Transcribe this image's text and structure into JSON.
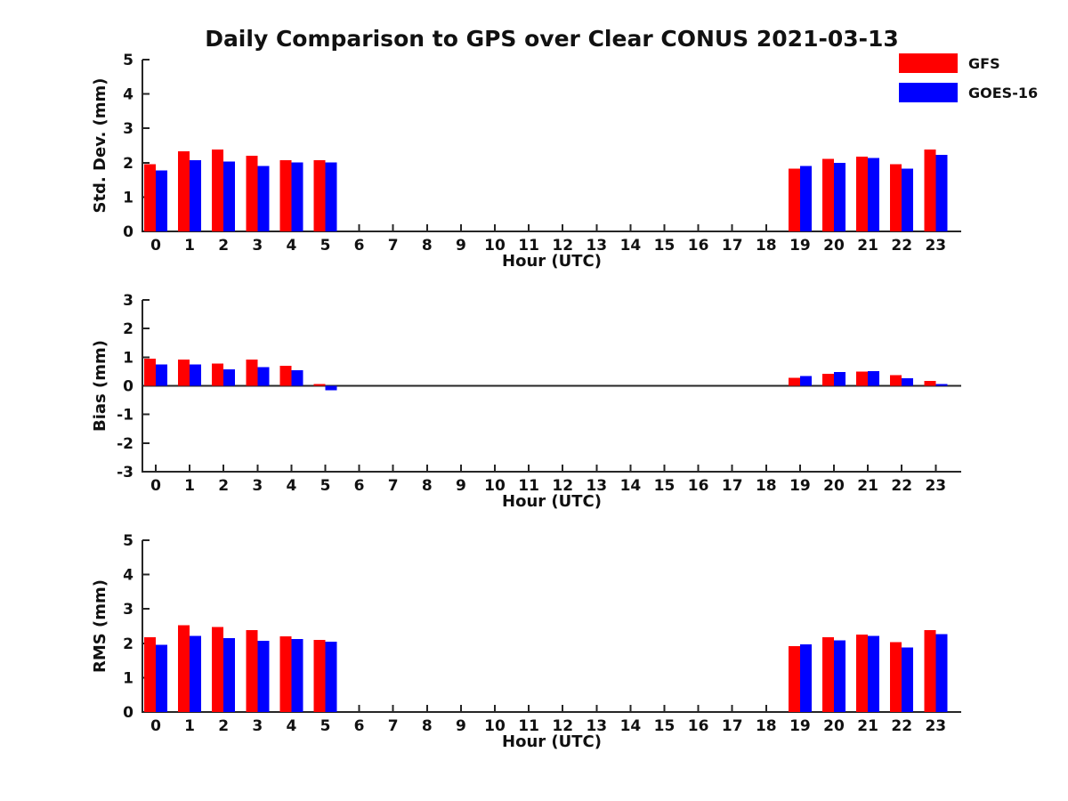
{
  "title": "Daily Comparison to GPS over Clear CONUS 2021-03-13",
  "colors": {
    "gfs": "#ff0000",
    "goes16": "#0000ff",
    "axis": "#262626",
    "text": "#111111",
    "background": "#ffffff"
  },
  "legend": [
    {
      "label": "GFS",
      "color": "#ff0000"
    },
    {
      "label": "GOES-16",
      "color": "#0000ff"
    }
  ],
  "chart_data": [
    {
      "id": "stddev",
      "type": "bar",
      "title": "",
      "xlabel": "Hour (UTC)",
      "ylabel": "Std. Dev. (mm)",
      "ylim": [
        0,
        5
      ],
      "yticks": [
        0,
        1,
        2,
        3,
        4,
        5
      ],
      "grid": false,
      "legend_position": "figure-top-right",
      "categories": [
        0,
        1,
        2,
        3,
        4,
        5,
        6,
        7,
        8,
        9,
        10,
        11,
        12,
        13,
        14,
        15,
        16,
        17,
        18,
        19,
        20,
        21,
        22,
        23
      ],
      "series": [
        {
          "name": "GFS",
          "color": "#ff0000",
          "values": [
            1.95,
            2.33,
            2.38,
            2.2,
            2.07,
            2.07,
            null,
            null,
            null,
            null,
            null,
            null,
            null,
            null,
            null,
            null,
            null,
            null,
            null,
            1.83,
            2.11,
            2.18,
            1.95,
            2.38
          ]
        },
        {
          "name": "GOES-16",
          "color": "#0000ff",
          "values": [
            1.77,
            2.07,
            2.04,
            1.91,
            2.01,
            2.01,
            null,
            null,
            null,
            null,
            null,
            null,
            null,
            null,
            null,
            null,
            null,
            null,
            null,
            1.9,
            1.99,
            2.14,
            1.83,
            2.23
          ]
        }
      ]
    },
    {
      "id": "bias",
      "type": "bar",
      "title": "",
      "xlabel": "Hour (UTC)",
      "ylabel": "Bias (mm)",
      "ylim": [
        -3,
        3
      ],
      "yticks": [
        -3,
        -2,
        -1,
        0,
        1,
        2,
        3
      ],
      "grid": false,
      "legend_position": "figure-top-right",
      "categories": [
        0,
        1,
        2,
        3,
        4,
        5,
        6,
        7,
        8,
        9,
        10,
        11,
        12,
        13,
        14,
        15,
        16,
        17,
        18,
        19,
        20,
        21,
        22,
        23
      ],
      "series": [
        {
          "name": "GFS",
          "color": "#ff0000",
          "values": [
            0.95,
            0.91,
            0.77,
            0.91,
            0.7,
            0.06,
            null,
            null,
            null,
            null,
            null,
            null,
            null,
            null,
            null,
            null,
            null,
            null,
            null,
            0.28,
            0.42,
            0.5,
            0.38,
            0.17
          ]
        },
        {
          "name": "GOES-16",
          "color": "#0000ff",
          "values": [
            0.75,
            0.74,
            0.58,
            0.66,
            0.55,
            -0.15,
            null,
            null,
            null,
            null,
            null,
            null,
            null,
            null,
            null,
            null,
            null,
            null,
            null,
            0.34,
            0.48,
            0.52,
            0.26,
            0.06
          ]
        }
      ]
    },
    {
      "id": "rms",
      "type": "bar",
      "title": "",
      "xlabel": "Hour (UTC)",
      "ylabel": "RMS (mm)",
      "ylim": [
        0,
        5
      ],
      "yticks": [
        0,
        1,
        2,
        3,
        4,
        5
      ],
      "grid": false,
      "legend_position": "figure-top-right",
      "categories": [
        0,
        1,
        2,
        3,
        4,
        5,
        6,
        7,
        8,
        9,
        10,
        11,
        12,
        13,
        14,
        15,
        16,
        17,
        18,
        19,
        20,
        21,
        22,
        23
      ],
      "series": [
        {
          "name": "GFS",
          "color": "#ff0000",
          "values": [
            2.17,
            2.52,
            2.48,
            2.38,
            2.2,
            2.1,
            null,
            null,
            null,
            null,
            null,
            null,
            null,
            null,
            null,
            null,
            null,
            null,
            null,
            1.92,
            2.17,
            2.25,
            2.03,
            2.38
          ]
        },
        {
          "name": "GOES-16",
          "color": "#0000ff",
          "values": [
            1.95,
            2.22,
            2.15,
            2.07,
            2.13,
            2.05,
            null,
            null,
            null,
            null,
            null,
            null,
            null,
            null,
            null,
            null,
            null,
            null,
            null,
            1.97,
            2.08,
            2.22,
            1.88,
            2.27
          ]
        }
      ]
    }
  ]
}
